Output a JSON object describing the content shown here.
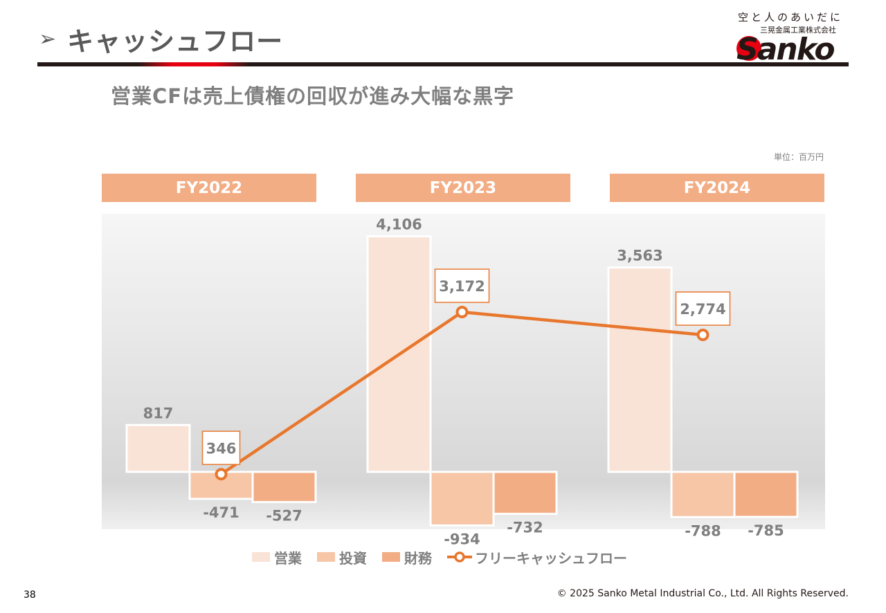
{
  "header": {
    "arrow": "➢",
    "title": "キャッシュフロー",
    "logo_tagline": "空と人のあいだに",
    "logo_company": "三晃金属工業株式会社",
    "logo_name": "Sanko"
  },
  "subtitle": "営業CFは売上債権の回収が進み大幅な黒字",
  "unit": "単位：百万円",
  "colors": {
    "operating": "#f9e3d7",
    "investing": "#f6c6a7",
    "financing": "#f2ad85",
    "free_cf": "#e8772e",
    "header_band": "#f2ad85"
  },
  "chart_data": {
    "type": "bar",
    "categories": [
      "FY2022",
      "FY2023",
      "FY2024"
    ],
    "series": [
      {
        "name": "営業",
        "kind": "bar",
        "values": [
          817,
          4106,
          3563
        ],
        "labels": [
          "817",
          "4,106",
          "3,563"
        ]
      },
      {
        "name": "投資",
        "kind": "bar",
        "values": [
          -471,
          -934,
          -788
        ],
        "labels": [
          "-471",
          "-934",
          "-788"
        ]
      },
      {
        "name": "財務",
        "kind": "bar",
        "values": [
          -527,
          -732,
          -785
        ],
        "labels": [
          "-527",
          "-732",
          "-785"
        ]
      },
      {
        "name": "フリーキャッシュフロー",
        "kind": "line",
        "values": [
          346,
          3172,
          2774
        ],
        "labels": [
          "346",
          "3,172",
          "2,774"
        ]
      }
    ],
    "legend_position": "bottom"
  },
  "footer": {
    "page_number": "38",
    "copyright": "© 2025 Sanko Metal Industrial Co., Ltd. All Rights Reserved."
  }
}
